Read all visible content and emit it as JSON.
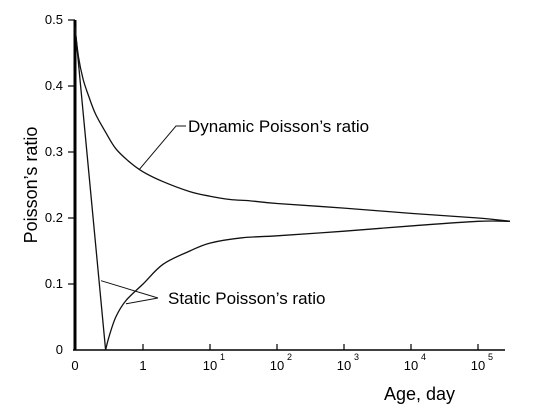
{
  "chart_data": {
    "type": "line",
    "title": "",
    "xlabel": "Age, day",
    "ylabel": "Poisson’s ratio",
    "x_axis": {
      "scale": "piecewise (0, 1, then log decades)",
      "ticks": [
        {
          "value": 0,
          "base": "0",
          "exp": ""
        },
        {
          "value": 1,
          "base": "1",
          "exp": ""
        },
        {
          "value": 10,
          "base": "10",
          "exp": "1"
        },
        {
          "value": 100,
          "base": "10",
          "exp": "2"
        },
        {
          "value": 1000,
          "base": "10",
          "exp": "3"
        },
        {
          "value": 10000,
          "base": "10",
          "exp": "4"
        },
        {
          "value": 100000,
          "base": "10",
          "exp": "5"
        }
      ]
    },
    "y_axis": {
      "ylim": [
        0,
        0.5
      ],
      "ticks": [
        {
          "value": 0,
          "label": "0"
        },
        {
          "value": 0.1,
          "label": "0.1"
        },
        {
          "value": 0.2,
          "label": "0.2"
        },
        {
          "value": 0.3,
          "label": "0.3"
        },
        {
          "value": 0.4,
          "label": "0.4"
        },
        {
          "value": 0.5,
          "label": "0.5"
        }
      ]
    },
    "grid": false,
    "series": [
      {
        "name": "Dynamic Poisson’s ratio",
        "points": [
          [
            0,
            0.49
          ],
          [
            0.05,
            0.445
          ],
          [
            0.12,
            0.41
          ],
          [
            0.2,
            0.385
          ],
          [
            0.3,
            0.358
          ],
          [
            0.45,
            0.33
          ],
          [
            0.6,
            0.305
          ],
          [
            0.8,
            0.285
          ],
          [
            1,
            0.27
          ],
          [
            2,
            0.255
          ],
          [
            5,
            0.24
          ],
          [
            10,
            0.233
          ],
          [
            20,
            0.228
          ],
          [
            40,
            0.226
          ],
          [
            100,
            0.222
          ],
          [
            1000,
            0.215
          ],
          [
            10000,
            0.207
          ],
          [
            100000,
            0.2
          ],
          [
            300000,
            0.195
          ]
        ]
      },
      {
        "name": "Static Poisson’s ratio",
        "points": [
          [
            0,
            0.49
          ],
          [
            0.45,
            0.0
          ],
          [
            0.5,
            0.02
          ],
          [
            0.6,
            0.05
          ],
          [
            0.75,
            0.075
          ],
          [
            1,
            0.1
          ],
          [
            2,
            0.13
          ],
          [
            5,
            0.15
          ],
          [
            10,
            0.162
          ],
          [
            30,
            0.17
          ],
          [
            100,
            0.173
          ],
          [
            1000,
            0.18
          ],
          [
            10000,
            0.188
          ],
          [
            100000,
            0.195
          ],
          [
            300000,
            0.195
          ]
        ]
      }
    ],
    "annotations": [
      {
        "text": "Dynamic Poisson’s ratio",
        "target": 0
      },
      {
        "text": "Static Poisson’s ratio",
        "target": 1
      }
    ]
  }
}
